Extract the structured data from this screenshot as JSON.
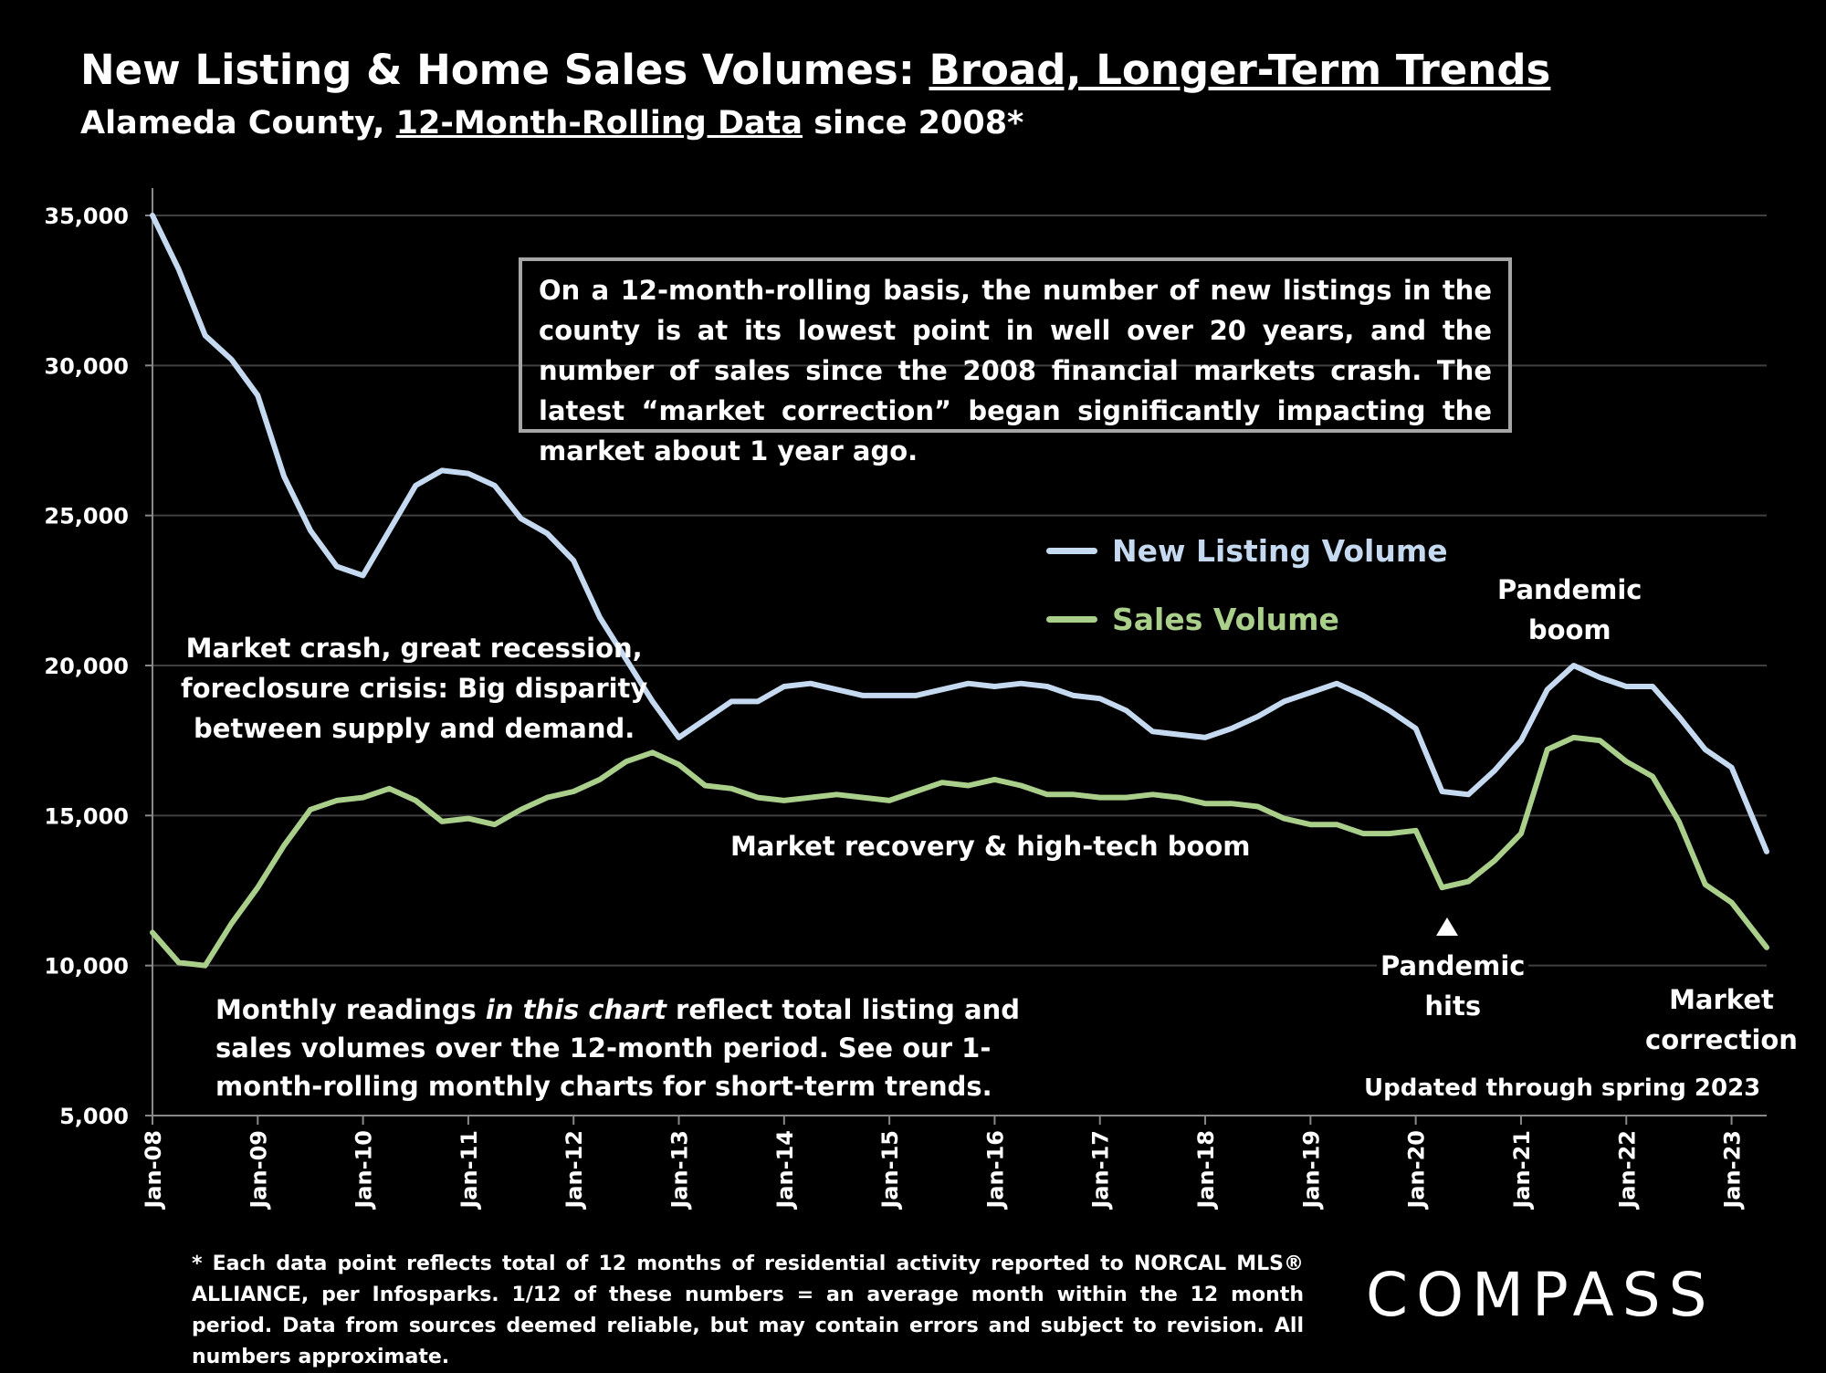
{
  "header": {
    "title_prefix": "New Listing & Home Sales Volumes: ",
    "title_underlined": "Broad, Longer-Term Trends",
    "subtitle_prefix": "Alameda County, ",
    "subtitle_underlined": "12-Month-Rolling Data",
    "subtitle_suffix": " since 2008*"
  },
  "callout": "On a 12-month-rolling basis, the number of new listings in the county is at its lowest point in well over 20 years, and the number of sales since the 2008 financial markets crash. The latest “market correction” began significantly impacting the market about 1 year ago.",
  "annotations": {
    "crash_line1": "Market crash,  great recession,",
    "crash_line2": "foreclosure crisis: Big disparity",
    "crash_line3": "between supply and demand.",
    "recovery": "Market recovery & high-tech boom",
    "pandemic_boom_line1": "Pandemic",
    "pandemic_boom_line2": "boom",
    "pandemic_hits_line1": "Pandemic",
    "pandemic_hits_line2": "hits",
    "market_correction_line1": "Market",
    "market_correction_line2": "correction",
    "updated": "Updated through spring 2023",
    "monthly_line1_a": "Monthly readings ",
    "monthly_line1_b": "in this chart",
    "monthly_line1_c": " reflect total listing and",
    "monthly_line2": "sales volumes over the 12-month period. See our 1-",
    "monthly_line3": "month-rolling monthly charts for short-term trends."
  },
  "footnote": "* Each data point reflects total of 12 months of residential activity reported to NORCAL MLS® ALLIANCE, per Infosparks. 1/12 of these numbers = an average month within the 12 month period. Data from sources deemed reliable, but may contain errors and subject to revision. All numbers approximate.",
  "logo": "COMPASS",
  "colors": {
    "background": "#000000",
    "new_listing": "#c5d9f1",
    "sales": "#a9cf8a",
    "gridline": "#404040",
    "callout_border": "#a6a6a6"
  },
  "chart_data": {
    "type": "line",
    "title": "New Listing & Home Sales Volumes: Broad, Longer-Term Trends",
    "ylim": [
      5000,
      35000
    ],
    "yticks": [
      5000,
      10000,
      15000,
      20000,
      25000,
      30000,
      35000
    ],
    "ytick_labels": [
      "5,000",
      "10,000",
      "15,000",
      "20,000",
      "25,000",
      "30,000",
      "35,000"
    ],
    "x_tick_labels": [
      "Jan-08",
      "Jan-09",
      "Jan-10",
      "Jan-11",
      "Jan-12",
      "Jan-13",
      "Jan-14",
      "Jan-15",
      "Jan-16",
      "Jan-17",
      "Jan-18",
      "Jan-19",
      "Jan-20",
      "Jan-21",
      "Jan-22",
      "Jan-23"
    ],
    "x_start": "Jan-08",
    "x_end": "May-23",
    "grid": true,
    "legend_position": "center-right",
    "series": [
      {
        "name": "New Listing Volume",
        "color": "#c5d9f1",
        "points": [
          [
            "Jan-08",
            35000
          ],
          [
            "Apr-08",
            33200
          ],
          [
            "Jul-08",
            31000
          ],
          [
            "Oct-08",
            30200
          ],
          [
            "Jan-09",
            29000
          ],
          [
            "Apr-09",
            26300
          ],
          [
            "Jul-09",
            24500
          ],
          [
            "Oct-09",
            23300
          ],
          [
            "Jan-10",
            23000
          ],
          [
            "Apr-10",
            24500
          ],
          [
            "Jul-10",
            26000
          ],
          [
            "Oct-10",
            26500
          ],
          [
            "Jan-11",
            26400
          ],
          [
            "Apr-11",
            26000
          ],
          [
            "Jul-11",
            24900
          ],
          [
            "Oct-11",
            24400
          ],
          [
            "Jan-12",
            23500
          ],
          [
            "Apr-12",
            21600
          ],
          [
            "Jul-12",
            20200
          ],
          [
            "Oct-12",
            18800
          ],
          [
            "Jan-13",
            17600
          ],
          [
            "Apr-13",
            18200
          ],
          [
            "Jul-13",
            18800
          ],
          [
            "Oct-13",
            18800
          ],
          [
            "Jan-14",
            19300
          ],
          [
            "Apr-14",
            19400
          ],
          [
            "Jul-14",
            19200
          ],
          [
            "Oct-14",
            19000
          ],
          [
            "Jan-15",
            19000
          ],
          [
            "Apr-15",
            19000
          ],
          [
            "Jul-15",
            19200
          ],
          [
            "Oct-15",
            19400
          ],
          [
            "Jan-16",
            19300
          ],
          [
            "Apr-16",
            19400
          ],
          [
            "Jul-16",
            19300
          ],
          [
            "Oct-16",
            19000
          ],
          [
            "Jan-17",
            18900
          ],
          [
            "Apr-17",
            18500
          ],
          [
            "Jul-17",
            17800
          ],
          [
            "Oct-17",
            17700
          ],
          [
            "Jan-18",
            17600
          ],
          [
            "Apr-18",
            17900
          ],
          [
            "Jul-18",
            18300
          ],
          [
            "Oct-18",
            18800
          ],
          [
            "Jan-19",
            19100
          ],
          [
            "Apr-19",
            19400
          ],
          [
            "Jul-19",
            19000
          ],
          [
            "Oct-19",
            18500
          ],
          [
            "Jan-20",
            17900
          ],
          [
            "Apr-20",
            15800
          ],
          [
            "Jul-20",
            15700
          ],
          [
            "Oct-20",
            16500
          ],
          [
            "Jan-21",
            17500
          ],
          [
            "Apr-21",
            19200
          ],
          [
            "Jul-21",
            20000
          ],
          [
            "Oct-21",
            19600
          ],
          [
            "Jan-22",
            19300
          ],
          [
            "Apr-22",
            19300
          ],
          [
            "Jul-22",
            18300
          ],
          [
            "Oct-22",
            17200
          ],
          [
            "Jan-23",
            16600
          ],
          [
            "May-23",
            13800
          ]
        ]
      },
      {
        "name": "Sales Volume",
        "color": "#a9cf8a",
        "points": [
          [
            "Jan-08",
            11100
          ],
          [
            "Apr-08",
            10100
          ],
          [
            "Jul-08",
            10000
          ],
          [
            "Oct-08",
            11400
          ],
          [
            "Jan-09",
            12600
          ],
          [
            "Apr-09",
            14000
          ],
          [
            "Jul-09",
            15200
          ],
          [
            "Oct-09",
            15500
          ],
          [
            "Jan-10",
            15600
          ],
          [
            "Apr-10",
            15900
          ],
          [
            "Jul-10",
            15500
          ],
          [
            "Oct-10",
            14800
          ],
          [
            "Jan-11",
            14900
          ],
          [
            "Apr-11",
            14700
          ],
          [
            "Jul-11",
            15200
          ],
          [
            "Oct-11",
            15600
          ],
          [
            "Jan-12",
            15800
          ],
          [
            "Apr-12",
            16200
          ],
          [
            "Jul-12",
            16800
          ],
          [
            "Oct-12",
            17100
          ],
          [
            "Jan-13",
            16700
          ],
          [
            "Apr-13",
            16000
          ],
          [
            "Jul-13",
            15900
          ],
          [
            "Oct-13",
            15600
          ],
          [
            "Jan-14",
            15500
          ],
          [
            "Apr-14",
            15600
          ],
          [
            "Jul-14",
            15700
          ],
          [
            "Oct-14",
            15600
          ],
          [
            "Jan-15",
            15500
          ],
          [
            "Apr-15",
            15800
          ],
          [
            "Jul-15",
            16100
          ],
          [
            "Oct-15",
            16000
          ],
          [
            "Jan-16",
            16200
          ],
          [
            "Apr-16",
            16000
          ],
          [
            "Jul-16",
            15700
          ],
          [
            "Oct-16",
            15700
          ],
          [
            "Jan-17",
            15600
          ],
          [
            "Apr-17",
            15600
          ],
          [
            "Jul-17",
            15700
          ],
          [
            "Oct-17",
            15600
          ],
          [
            "Jan-18",
            15400
          ],
          [
            "Apr-18",
            15400
          ],
          [
            "Jul-18",
            15300
          ],
          [
            "Oct-18",
            14900
          ],
          [
            "Jan-19",
            14700
          ],
          [
            "Apr-19",
            14700
          ],
          [
            "Jul-19",
            14400
          ],
          [
            "Oct-19",
            14400
          ],
          [
            "Jan-20",
            14500
          ],
          [
            "Apr-20",
            12600
          ],
          [
            "Jul-20",
            12800
          ],
          [
            "Oct-20",
            13500
          ],
          [
            "Jan-21",
            14400
          ],
          [
            "Apr-21",
            17200
          ],
          [
            "Jul-21",
            17600
          ],
          [
            "Oct-21",
            17500
          ],
          [
            "Jan-22",
            16800
          ],
          [
            "Apr-22",
            16300
          ],
          [
            "Jul-22",
            14800
          ],
          [
            "Oct-22",
            12700
          ],
          [
            "Jan-23",
            12100
          ],
          [
            "May-23",
            10600
          ]
        ]
      }
    ]
  }
}
